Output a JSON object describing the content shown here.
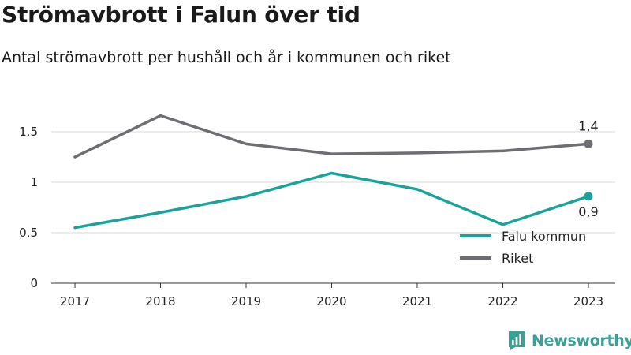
{
  "title": "Strömavbrott i Falun över tid",
  "subtitle": "Antal strömavbrott per hushåll och år i kommunen och riket",
  "brand": "Newsworthy",
  "chart_data": {
    "type": "line",
    "x": [
      "2017",
      "2018",
      "2019",
      "2020",
      "2021",
      "2022",
      "2023"
    ],
    "ylim": [
      0,
      1.75
    ],
    "yticks": [
      0,
      0.5,
      1,
      1.5
    ],
    "ytick_labels": [
      "0",
      "0,5",
      "1",
      "1,5"
    ],
    "grid": true,
    "legend_position": "bottom-right",
    "series": [
      {
        "name": "Falu kommun",
        "color": "#1aa39a",
        "values": [
          0.55,
          0.7,
          0.86,
          1.09,
          0.93,
          0.58,
          0.86
        ],
        "end_label": "0,9"
      },
      {
        "name": "Riket",
        "color": "#6d6d72",
        "values": [
          1.25,
          1.66,
          1.38,
          1.28,
          1.29,
          1.31,
          1.38
        ],
        "end_label": "1,4"
      }
    ]
  }
}
